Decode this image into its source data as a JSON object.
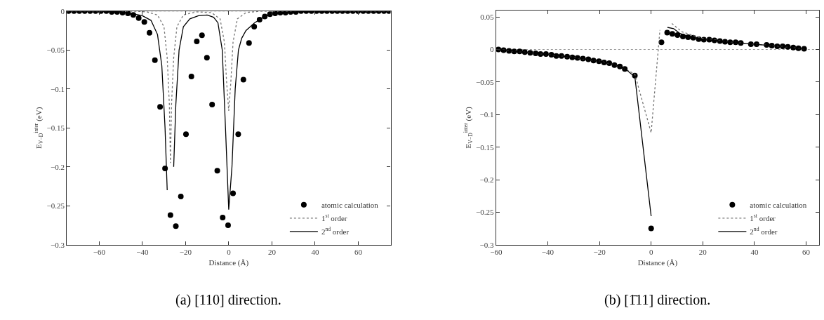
{
  "chart_data": [
    {
      "type": "line",
      "title": "(a) [110] direction.",
      "xlabel": "Distance (Å)",
      "ylabel": "E$_{V−D}$$^{inter}$ (eV)",
      "xlim": [
        -75,
        75
      ],
      "xticks": [
        -60,
        -40,
        -20,
        0,
        20,
        40,
        60
      ],
      "ylim": [
        -0.3,
        0
      ],
      "yticks": [
        -0.3,
        -0.25,
        -0.2,
        -0.15,
        -0.1,
        -0.05,
        0
      ],
      "legend": "bottom right",
      "grid": false,
      "ref_lines": [
        {
          "axis": "y",
          "value": 0,
          "color": "#999999",
          "line_style": "dotted"
        }
      ],
      "series": [
        {
          "name": "atomic calculation",
          "type": "scatter",
          "marker": "circle",
          "color": "#000000",
          "x": [
            -74.2,
            -71.7,
            -69.2,
            -66.7,
            -64.2,
            -61.7,
            -59.2,
            -56.7,
            -54.2,
            -51.7,
            -49.2,
            -46.7,
            -44.2,
            -41.7,
            -39.1,
            -36.7,
            -34.2,
            -31.8,
            -29.5,
            -27.0,
            -24.5,
            -22.2,
            -19.8,
            -17.3,
            -14.8,
            -12.4,
            -10.1,
            -7.7,
            -5.3,
            -2.8,
            -0.3,
            2.0,
            4.4,
            6.8,
            9.4,
            11.8,
            14.3,
            16.7,
            19.1,
            21.5,
            23.9,
            26.3,
            28.7,
            31.1,
            33.5,
            35.9,
            38.3,
            40.7,
            43.1,
            45.5,
            47.9,
            50.3,
            52.7,
            55.1,
            57.5,
            59.9,
            62.3,
            64.7,
            67.1,
            69.5,
            71.9,
            74.2
          ],
          "values": [
            0,
            0,
            0,
            0,
            0,
            0,
            0,
            0,
            -0.001,
            -0.001,
            -0.002,
            -0.003,
            -0.005,
            -0.009,
            -0.014,
            -0.028,
            -0.063,
            -0.123,
            -0.202,
            -0.262,
            -0.276,
            -0.238,
            -0.158,
            -0.084,
            -0.039,
            -0.031,
            -0.06,
            -0.12,
            -0.205,
            -0.265,
            -0.275,
            -0.234,
            -0.158,
            -0.088,
            -0.041,
            -0.02,
            -0.011,
            -0.007,
            -0.004,
            -0.003,
            -0.002,
            -0.002,
            -0.001,
            -0.001,
            0,
            0,
            0,
            0,
            0,
            0,
            0,
            0,
            0,
            0,
            0,
            0,
            0,
            0,
            0,
            0,
            0,
            0
          ]
        },
        {
          "name": "1$^{st}$ order",
          "line_style": "dotted",
          "color": "#777777",
          "x": [
            -75,
            -45,
            -38,
            -33,
            -30,
            -28.5,
            -27.5,
            -27,
            -26.5,
            -25.5,
            -24,
            -21,
            -15,
            -8,
            -4,
            -2,
            -1,
            0,
            1,
            2,
            4,
            8,
            15,
            75
          ],
          "values": [
            0,
            0,
            -0.001,
            -0.005,
            -0.02,
            -0.06,
            -0.12,
            -0.195,
            -0.12,
            -0.06,
            -0.02,
            -0.005,
            -0.001,
            -0.002,
            -0.01,
            -0.04,
            -0.09,
            -0.128,
            -0.09,
            -0.04,
            -0.01,
            -0.002,
            0,
            0
          ]
        },
        {
          "name": "2$^{nd}$ order",
          "line_style": "solid",
          "color": "#000000",
          "x": [
            -75,
            -60,
            -50,
            -45,
            -40,
            -36,
            -33,
            -31,
            -29.5,
            -28.5,
            -27.6,
            -26.5,
            -25.5,
            -24.5,
            -23,
            -21,
            -18,
            -14,
            -10,
            -7,
            -5,
            -3,
            -1.5,
            0,
            1.5,
            3,
            4.5,
            6,
            8,
            12,
            16,
            20,
            30,
            50,
            75
          ],
          "values": [
            0,
            0,
            -0.001,
            -0.003,
            -0.006,
            -0.012,
            -0.03,
            -0.07,
            -0.15,
            -0.23,
            null,
            null,
            -0.2,
            -0.12,
            -0.05,
            -0.02,
            -0.01,
            -0.006,
            -0.005,
            -0.008,
            -0.015,
            -0.05,
            -0.15,
            -0.255,
            -0.2,
            -0.1,
            -0.05,
            -0.035,
            -0.025,
            -0.015,
            -0.008,
            -0.004,
            -0.001,
            0,
            0
          ]
        }
      ]
    },
    {
      "type": "line",
      "title": "(b) [1̄11] direction.",
      "xlabel": "Distance (Å)",
      "ylabel": "E$_{V−D}$$^{inter}$ (eV)",
      "xlim": [
        -60,
        65
      ],
      "xticks": [
        -60,
        -40,
        -20,
        0,
        20,
        40,
        60
      ],
      "ylim": [
        -0.3,
        0.06
      ],
      "yticks": [
        -0.3,
        -0.25,
        -0.2,
        -0.15,
        -0.1,
        -0.05,
        0,
        0.05
      ],
      "legend": "bottom right",
      "grid": false,
      "ref_lines": [
        {
          "axis": "y",
          "value": 0,
          "color": "#999999",
          "line_style": "dotted"
        }
      ],
      "series": [
        {
          "name": "atomic calculation",
          "type": "scatter",
          "marker": "circle",
          "color": "#000000",
          "x": [
            -59.1,
            -57.1,
            -55.0,
            -53.0,
            -50.9,
            -48.9,
            -46.8,
            -44.7,
            -42.8,
            -40.7,
            -38.6,
            -36.7,
            -34.7,
            -32.5,
            -30.5,
            -28.5,
            -26.4,
            -24.3,
            -22.3,
            -20.2,
            -18.2,
            -16.2,
            -14.2,
            -12.1,
            -10.2,
            -6.3,
            0,
            4.0,
            6.2,
            8.2,
            10.2,
            12.3,
            14.3,
            16.3,
            18.4,
            20.4,
            22.5,
            24.5,
            26.6,
            28.6,
            30.6,
            32.7,
            34.7,
            38.6,
            40.8,
            44.7,
            46.7,
            48.8,
            50.9,
            52.9,
            55.0,
            57.0,
            59.2
          ],
          "values": [
            0,
            -0.001,
            -0.002,
            -0.003,
            -0.003,
            -0.004,
            -0.005,
            -0.006,
            -0.007,
            -0.007,
            -0.008,
            -0.01,
            -0.01,
            -0.011,
            -0.012,
            -0.013,
            -0.014,
            -0.015,
            -0.017,
            -0.018,
            -0.02,
            -0.021,
            -0.024,
            -0.026,
            -0.03,
            -0.04,
            -0.275,
            0.011,
            0.026,
            0.024,
            0.022,
            0.02,
            0.019,
            0.018,
            0.016,
            0.015,
            0.015,
            0.014,
            0.013,
            0.012,
            0.011,
            0.011,
            0.01,
            0.008,
            0.008,
            0.007,
            0.006,
            0.005,
            0.005,
            0.004,
            0.003,
            0.002,
            0.001
          ]
        },
        {
          "name": "1$^{st}$ order",
          "line_style": "dotted",
          "color": "#777777",
          "x": [
            -59.1,
            -50,
            -40,
            -30,
            -20,
            -14,
            -10,
            -6.3,
            0,
            3.4,
            4.2,
            5.5,
            8,
            12,
            20,
            30,
            40,
            50,
            59.2
          ],
          "values": [
            0,
            -0.004,
            -0.008,
            -0.012,
            -0.018,
            -0.023,
            -0.03,
            -0.038,
            -0.128,
            0.03,
            null,
            null,
            0.04,
            0.027,
            0.017,
            0.012,
            0.008,
            0.005,
            0.001
          ]
        },
        {
          "name": "2$^{nd}$ order",
          "line_style": "solid",
          "color": "#000000",
          "x": [
            -59.1,
            -50,
            -40,
            -30,
            -20,
            -14,
            -10,
            -6.3,
            0,
            3.9,
            6.3,
            8.7,
            11,
            15,
            20,
            30,
            40,
            50,
            59.2
          ],
          "values": [
            0,
            -0.004,
            -0.008,
            -0.012,
            -0.018,
            -0.023,
            -0.03,
            -0.042,
            -0.256,
            null,
            0.034,
            0.032,
            0.025,
            0.019,
            0.016,
            0.012,
            0.008,
            0.005,
            0.001
          ]
        }
      ]
    }
  ]
}
